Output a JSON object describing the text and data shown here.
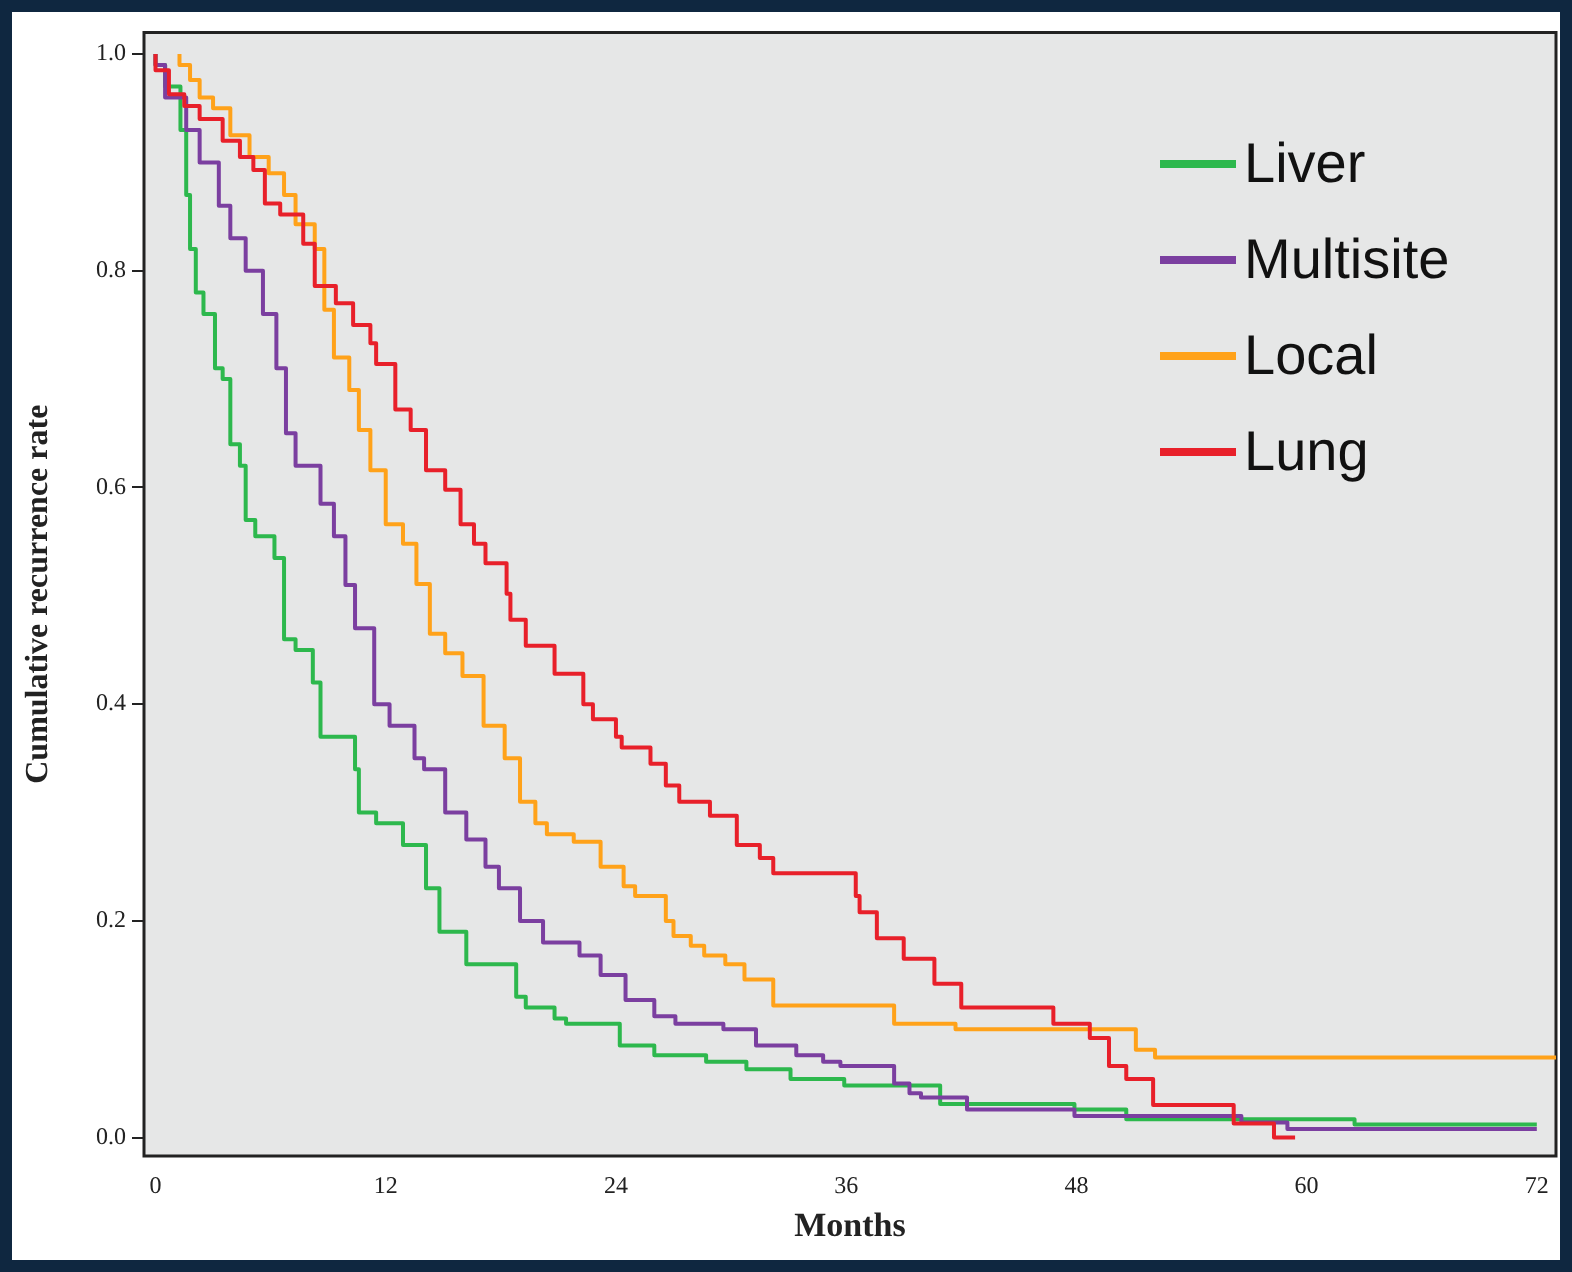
{
  "chart_data": {
    "type": "step",
    "xlabel": "Months",
    "ylabel": "Cumulative recurrence rate",
    "xlim": [
      -0.6,
      73
    ],
    "ylim": [
      -0.017,
      1.02
    ],
    "xticks": [
      0,
      12,
      24,
      36,
      48,
      60,
      72
    ],
    "yticks": [
      {
        "value": 0,
        "label": "0.0"
      },
      {
        "value": 0.2,
        "label": "0.2"
      },
      {
        "value": 0.4,
        "label": "0.4"
      },
      {
        "value": 0.6,
        "label": "0.6"
      },
      {
        "value": 0.8,
        "label": "0.8"
      },
      {
        "value": 1,
        "label": "1.0"
      }
    ],
    "legend": "top right",
    "series": [
      {
        "name": "Liver",
        "color": "#2db84d",
        "x": [
          0,
          0.5,
          1.3,
          1.6,
          1.8,
          2.1,
          2.5,
          3.1,
          3.5,
          3.9,
          4.4,
          4.7,
          5.2,
          6.2,
          6.7,
          7.3,
          8.2,
          8.6,
          9.3,
          10.4,
          10.6,
          11.5,
          12.9,
          14.1,
          14.8,
          16.2,
          17.2,
          18.8,
          19.3,
          20.8,
          21.4,
          24.2,
          26,
          28.7,
          30.8,
          33.1,
          35.9,
          40.9,
          47.9,
          50.6,
          62.5,
          68.6,
          72
        ],
        "values": [
          1,
          0.99,
          0.97,
          0.93,
          0.87,
          0.82,
          0.78,
          0.76,
          0.71,
          0.7,
          0.64,
          0.62,
          0.57,
          0.555,
          0.535,
          0.46,
          0.45,
          0.42,
          0.37,
          0.37,
          0.34,
          0.3,
          0.29,
          0.27,
          0.23,
          0.19,
          0.16,
          0.16,
          0.13,
          0.12,
          0.11,
          0.105,
          0.085,
          0.076,
          0.07,
          0.063,
          0.054,
          0.048,
          0.031,
          0.026,
          0.017,
          0.012,
          0.012
        ]
      },
      {
        "name": "Multisite",
        "color": "#7b3fa0",
        "x": [
          0,
          0.5,
          1.6,
          2.3,
          3.3,
          3.9,
          4.7,
          5.6,
          6.3,
          6.8,
          7.3,
          8.6,
          9.3,
          9.9,
          10.4,
          11.4,
          12.2,
          13.5,
          14,
          15.1,
          16.2,
          17.2,
          17.9,
          19,
          20.2,
          22.1,
          23.2,
          24.5,
          26,
          27.1,
          29.6,
          31.3,
          33.4,
          34.8,
          35.7,
          38.5,
          39.3,
          39.9,
          42.3,
          47.9,
          56.6,
          59,
          66,
          72
        ],
        "values": [
          1,
          0.99,
          0.96,
          0.93,
          0.9,
          0.86,
          0.83,
          0.8,
          0.76,
          0.71,
          0.65,
          0.62,
          0.585,
          0.555,
          0.51,
          0.47,
          0.4,
          0.38,
          0.35,
          0.34,
          0.3,
          0.275,
          0.25,
          0.23,
          0.2,
          0.18,
          0.168,
          0.15,
          0.127,
          0.112,
          0.105,
          0.1,
          0.085,
          0.076,
          0.07,
          0.066,
          0.05,
          0.041,
          0.037,
          0.026,
          0.02,
          0.014,
          0.008,
          0.008
        ]
      },
      {
        "name": "Local",
        "color": "#ffa21a",
        "x": [
          1.25,
          1.8,
          2.3,
          3,
          3.9,
          4.9,
          5.9,
          6.7,
          7.3,
          8.3,
          8.8,
          9.3,
          10.1,
          10.6,
          11.2,
          12,
          12.9,
          13.6,
          14.3,
          15.1,
          16,
          17.1,
          18.2,
          19,
          19.8,
          20.4,
          21.8,
          23.2,
          24.4,
          25,
          26.6,
          27,
          27.9,
          28.6,
          29.7,
          30.7,
          32.2,
          38.5,
          41.7,
          51.1,
          52.1,
          62.5,
          73
        ],
        "values": [
          1,
          0.99,
          0.976,
          0.96,
          0.95,
          0.925,
          0.905,
          0.89,
          0.87,
          0.843,
          0.82,
          0.764,
          0.72,
          0.69,
          0.653,
          0.616,
          0.566,
          0.548,
          0.511,
          0.465,
          0.447,
          0.426,
          0.38,
          0.35,
          0.31,
          0.29,
          0.28,
          0.273,
          0.25,
          0.232,
          0.223,
          0.2,
          0.186,
          0.177,
          0.168,
          0.16,
          0.146,
          0.122,
          0.105,
          0.1,
          0.081,
          0.074,
          0.074
        ]
      },
      {
        "name": "Lung",
        "color": "#e8202a",
        "x": [
          0,
          0.7,
          1.5,
          2.3,
          3.5,
          4.4,
          5.1,
          5.7,
          6.5,
          7.7,
          8.3,
          9.4,
          10.3,
          11.2,
          11.5,
          12.5,
          13.3,
          14.1,
          15.1,
          15.9,
          16.6,
          17.2,
          18.3,
          18.5,
          19.3,
          20.8,
          22.3,
          22.8,
          24,
          24.3,
          25.8,
          26.6,
          27.3,
          28.9,
          30.3,
          31.5,
          32.2,
          36.5,
          36.7,
          37.6,
          39,
          40.6,
          42,
          46.8,
          48.7,
          49.7,
          50.6,
          52,
          56.2,
          58.3,
          59.4
        ],
        "values": [
          1,
          0.985,
          0.963,
          0.952,
          0.94,
          0.92,
          0.905,
          0.893,
          0.862,
          0.852,
          0.825,
          0.786,
          0.77,
          0.75,
          0.733,
          0.714,
          0.672,
          0.653,
          0.616,
          0.598,
          0.566,
          0.548,
          0.53,
          0.502,
          0.478,
          0.454,
          0.428,
          0.4,
          0.386,
          0.37,
          0.36,
          0.345,
          0.325,
          0.31,
          0.297,
          0.27,
          0.258,
          0.244,
          0.223,
          0.208,
          0.184,
          0.165,
          0.142,
          0.12,
          0.105,
          0.092,
          0.066,
          0.054,
          0.03,
          0.013,
          0
        ]
      }
    ]
  }
}
